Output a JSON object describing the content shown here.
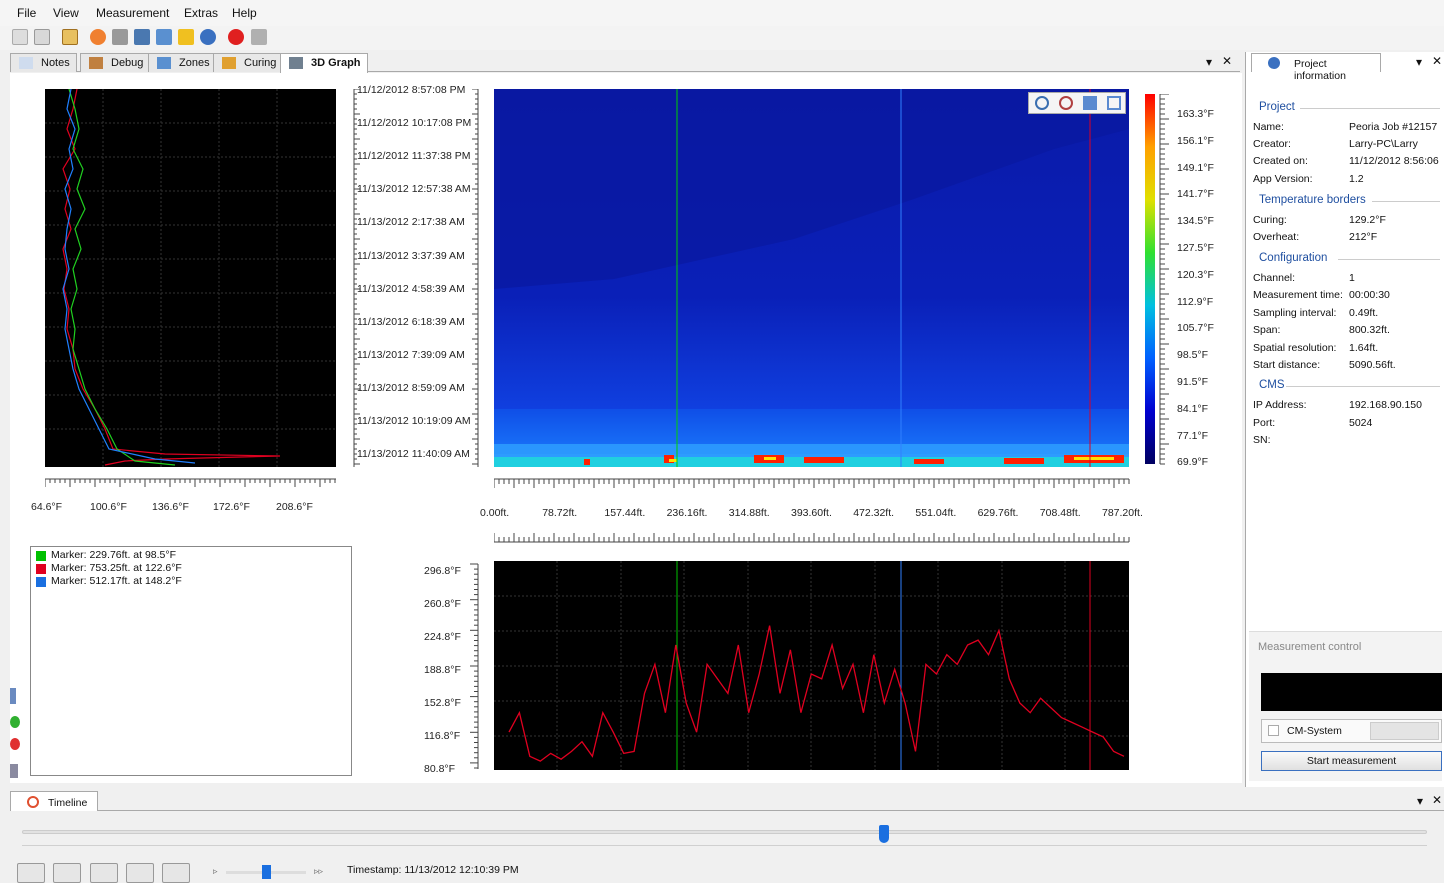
{
  "menu": [
    "File",
    "View",
    "Measurement",
    "Extras",
    "Help"
  ],
  "tabs": [
    "Notes",
    "Debug",
    "Zones",
    "Curing",
    "3D Graph"
  ],
  "profile_axis": [
    "64.6°F",
    "100.6°F",
    "136.6°F",
    "172.6°F",
    "208.6°F"
  ],
  "timestamps": [
    "11/12/2012 8:57:08 PM",
    "11/12/2012 10:17:08 PM",
    "11/12/2012 11:37:38 PM",
    "11/13/2012 12:57:38 AM",
    "11/13/2012 2:17:38 AM",
    "11/13/2012 3:37:39 AM",
    "11/13/2012 4:58:39 AM",
    "11/13/2012 6:18:39 AM",
    "11/13/2012 7:39:09 AM",
    "11/13/2012 8:59:09 AM",
    "11/13/2012 10:19:09 AM",
    "11/13/2012 11:40:09 AM"
  ],
  "colorbar_labels": [
    "163.3°F",
    "156.1°F",
    "149.1°F",
    "141.7°F",
    "134.5°F",
    "127.5°F",
    "120.3°F",
    "112.9°F",
    "105.7°F",
    "98.5°F",
    "91.5°F",
    "84.1°F",
    "77.1°F",
    "69.9°F"
  ],
  "distance_labels": [
    "0.00ft.",
    "78.72ft.",
    "157.44ft.",
    "236.16ft.",
    "314.88ft.",
    "393.60ft.",
    "472.32ft.",
    "551.04ft.",
    "629.76ft.",
    "708.48ft.",
    "787.20ft."
  ],
  "bottom_y_labels": [
    "296.8°F",
    "260.8°F",
    "224.8°F",
    "188.8°F",
    "152.8°F",
    "116.8°F",
    "80.8°F"
  ],
  "markers": [
    {
      "text": "Marker: 229.76ft. at 98.5°F",
      "color": "#00c000"
    },
    {
      "text": "Marker: 753.25ft. at 122.6°F",
      "color": "#e00020"
    },
    {
      "text": "Marker: 512.17ft. at 148.2°F",
      "color": "#1a6fe0"
    }
  ],
  "project_panel": {
    "title": "Project information",
    "project_header": "Project",
    "name_label": "Name:",
    "name": "Peoria Job #12157",
    "creator_label": "Creator:",
    "creator": "Larry-PC\\Larry",
    "created_label": "Created on:",
    "created": "11/12/2012 8:56:06",
    "app_label": "App Version:",
    "app_version": "1.2",
    "borders_header": "Temperature borders",
    "curing_label": "Curing:",
    "curing": "129.2°F",
    "overheat_label": "Overheat:",
    "overheat": "212°F",
    "config_header": "Configuration",
    "channel_label": "Channel:",
    "channel": "1",
    "mtime_label": "Measurement time:",
    "mtime": "00:00:30",
    "sampling_label": "Sampling interval:",
    "sampling": "0.49ft.",
    "span_label": "Span:",
    "span": "800.32ft.",
    "spatial_label": "Spatial resolution:",
    "spatial": "1.64ft.",
    "start_label": "Start distance:",
    "start": "5090.56ft.",
    "cms_header": "CMS",
    "ip_label": "IP Address:",
    "ip": "192.168.90.150",
    "port_label": "Port:",
    "port": "5024",
    "sn_label": "SN:"
  },
  "measurement_control": {
    "title": "Measurement control",
    "cm_system": "CM-System",
    "start_button": "Start measurement"
  },
  "timeline": {
    "title": "Timeline",
    "timestamp": "Timestamp: 11/13/2012 12:10:39 PM"
  },
  "chart_data": [
    {
      "type": "heatmap",
      "title": "",
      "xlabel": "",
      "ylabel": "",
      "x_ticks": [
        "0.00ft.",
        "78.72ft.",
        "157.44ft.",
        "236.16ft.",
        "314.88ft.",
        "393.60ft.",
        "472.32ft.",
        "551.04ft.",
        "629.76ft.",
        "708.48ft.",
        "787.20ft."
      ],
      "y_ticks": [
        "11/12/2012 8:57:08 PM",
        "11/13/2012 11:40:09 AM"
      ],
      "colorbar": {
        "min": 69.9,
        "max": 163.3,
        "unit": "°F"
      },
      "markers_ft": [
        229.76,
        512.17,
        753.25
      ]
    },
    {
      "type": "line",
      "title": "",
      "xlabel": "",
      "ylabel": "",
      "ylim": [
        80.8,
        296.8
      ],
      "series": [
        {
          "values": [
            120,
            140,
            95,
            90,
            98,
            92,
            100,
            110,
            95,
            140,
            120,
            98,
            100,
            160,
            190,
            140,
            210,
            150,
            120,
            190,
            175,
            160,
            210,
            140,
            180,
            230,
            160,
            205,
            140,
            180,
            175,
            210,
            165,
            190,
            140,
            200,
            150,
            185,
            150,
            100,
            190,
            180,
            200,
            190,
            210,
            215,
            200,
            225,
            175,
            150,
            140,
            155,
            145,
            135,
            130,
            125,
            120,
            115,
            100,
            95
          ]
        }
      ]
    }
  ]
}
